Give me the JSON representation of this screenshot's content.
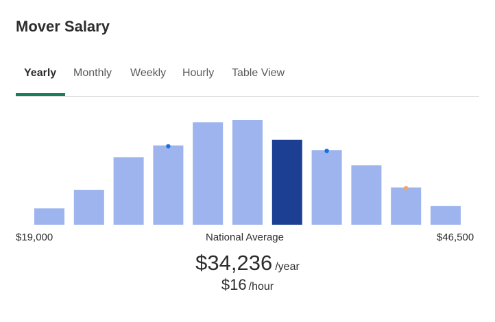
{
  "title": "Mover Salary",
  "tabs": [
    {
      "label": "Yearly",
      "active": true
    },
    {
      "label": "Monthly",
      "active": false
    },
    {
      "label": "Weekly",
      "active": false
    },
    {
      "label": "Hourly",
      "active": false
    },
    {
      "label": "Table View",
      "active": false
    }
  ],
  "colors": {
    "bar": "#9db4ee",
    "bar_highlight": "#1c3f94",
    "tab_accent": "#1a7a5c",
    "marker_blue": "#1a6fe0",
    "marker_orange": "#f2a56b"
  },
  "chart_data": {
    "type": "bar",
    "bins": 11,
    "values": [
      14,
      30,
      58,
      68,
      88,
      90,
      73,
      64,
      51,
      32,
      16
    ],
    "ylim": [
      0,
      100
    ],
    "highlight_index": 6,
    "markers": [
      {
        "bar_index": 3,
        "color": "blue"
      },
      {
        "bar_index": 7,
        "color": "blue"
      },
      {
        "bar_index": 9,
        "color": "orange"
      }
    ],
    "x_min_label": "$19,000",
    "x_center_label": "National Average",
    "x_max_label": "$46,500"
  },
  "salary": {
    "yearly_amount": "$34,236",
    "yearly_unit": "/year",
    "hourly_amount": "$16",
    "hourly_unit": "/hour"
  }
}
